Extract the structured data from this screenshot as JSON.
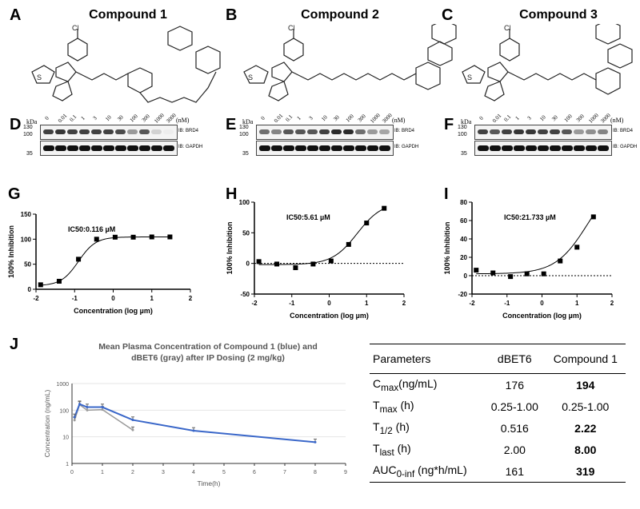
{
  "panels": {
    "A": "A",
    "B": "B",
    "C": "C",
    "D": "D",
    "E": "E",
    "F": "F",
    "G": "G",
    "H": "H",
    "I": "I",
    "J": "J"
  },
  "compounds": [
    "Compound 1",
    "Compound 2",
    "Compound 3"
  ],
  "blots": {
    "kda": "kDa",
    "unit": "(nM)",
    "concentrations": [
      "0",
      "0.01",
      "0.1",
      "1",
      "3",
      "10",
      "30",
      "100",
      "300",
      "1000",
      "3000"
    ],
    "markers": [
      "130",
      "100",
      "35"
    ],
    "labels": [
      "IB: BRD4",
      "IB: GAPDH"
    ],
    "brd4_intensity": {
      "D": [
        0.8,
        0.85,
        0.8,
        0.8,
        0.8,
        0.8,
        0.75,
        0.4,
        0.7,
        0.15,
        0.03
      ],
      "E": [
        0.6,
        0.5,
        0.7,
        0.7,
        0.7,
        0.8,
        0.9,
        0.9,
        0.6,
        0.4,
        0.35
      ],
      "F": [
        0.8,
        0.7,
        0.8,
        0.85,
        0.85,
        0.8,
        0.8,
        0.7,
        0.4,
        0.45,
        0.5
      ]
    }
  },
  "chart_data": [
    {
      "type": "scatter",
      "panel": "G",
      "annotation": "IC50:0.116 µM",
      "xlabel": "Concentration (log µm)",
      "ylabel": "100% Inhibition",
      "xlim": [
        -2,
        2
      ],
      "ylim": [
        0,
        150
      ],
      "xticks": [
        "-2",
        "-1",
        "0",
        "1",
        "2"
      ],
      "yticks": [
        "0",
        "50",
        "100",
        "150"
      ],
      "x": [
        -1.88,
        -1.4,
        -0.9,
        -0.43,
        0.05,
        0.52,
        1.0,
        1.47
      ],
      "y": [
        9,
        16,
        60,
        100,
        104,
        104,
        104.5,
        104.5
      ],
      "fit": "sigmoid"
    },
    {
      "type": "scatter",
      "panel": "H",
      "annotation": "IC50:5.61 µM",
      "xlabel": "Concentration (log µm)",
      "ylabel": "100% Inhibition",
      "xlim": [
        -2,
        2
      ],
      "ylim": [
        -50,
        100
      ],
      "xticks": [
        "-2",
        "-1",
        "0",
        "1",
        "2"
      ],
      "yticks": [
        "-50",
        "0",
        "50",
        "100"
      ],
      "x": [
        -1.88,
        -1.4,
        -0.9,
        -0.43,
        0.05,
        0.52,
        1.0,
        1.47
      ],
      "y": [
        3,
        -1,
        -7,
        -1,
        4,
        31,
        66,
        90
      ],
      "fit": "sigmoid",
      "zero_line": "dotted"
    },
    {
      "type": "scatter",
      "panel": "I",
      "annotation": "IC50:21.733 µM",
      "xlabel": "Concentration (log µm)",
      "ylabel": "100% Inhibition",
      "xlim": [
        -2,
        2
      ],
      "ylim": [
        -20,
        80
      ],
      "xticks": [
        "-2",
        "-1",
        "0",
        "1",
        "2"
      ],
      "yticks": [
        "-20",
        "0",
        "20",
        "40",
        "60",
        "80"
      ],
      "x": [
        -1.88,
        -1.4,
        -0.9,
        -0.43,
        0.05,
        0.52,
        1.0,
        1.47
      ],
      "y": [
        6,
        3,
        -1,
        2,
        2,
        16,
        31,
        64
      ],
      "fit": "sigmoid",
      "zero_line": "dotted"
    },
    {
      "type": "line",
      "panel": "J",
      "title": [
        "Mean Plasma Concentration of Compound 1 (blue) and",
        "dBET6 (gray) after IP Dosing (2 mg/kg)"
      ],
      "xlabel": "Time(h)",
      "ylabel": "Concentration (ng/mL)",
      "xlim": [
        0,
        9
      ],
      "ylim": [
        1,
        1000
      ],
      "yscale": "log",
      "grid": true,
      "xticks": [
        "0",
        "1",
        "2",
        "3",
        "4",
        "5",
        "6",
        "7",
        "8",
        "9"
      ],
      "yticks": [
        "1",
        "10",
        "100",
        "1000"
      ],
      "series": [
        {
          "color": "#3a67c9",
          "x": [
            0.083,
            0.25,
            0.5,
            1,
            2,
            4,
            8
          ],
          "y": [
            55,
            170,
            130,
            130,
            43,
            17,
            6.3
          ]
        },
        {
          "color": "#9a9a9a",
          "x": [
            0.083,
            0.25,
            0.5,
            1,
            2
          ],
          "y": [
            42,
            160,
            100,
            105,
            18
          ]
        }
      ]
    }
  ],
  "table": {
    "headers": [
      "Parameters",
      "dBET6",
      "Compound 1"
    ],
    "rows": [
      {
        "param": "C",
        "sub": "max",
        "unit": "(ng/mL)",
        "dbet6": "176",
        "c1": "194"
      },
      {
        "param": "T",
        "sub": "max",
        "unit": " (h)",
        "dbet6": "0.25-1.00",
        "c1": "0.25-1.00"
      },
      {
        "param": "T",
        "sub": "1/2",
        "unit": " (h)",
        "dbet6": "0.516",
        "c1": "2.22"
      },
      {
        "param": "T",
        "sub": "last",
        "unit": " (h)",
        "dbet6": "2.00",
        "c1": "8.00"
      },
      {
        "param": "AUC",
        "sub": "0-inf",
        "unit": " (ng*h/mL)",
        "dbet6": "161",
        "c1": "319"
      }
    ]
  }
}
